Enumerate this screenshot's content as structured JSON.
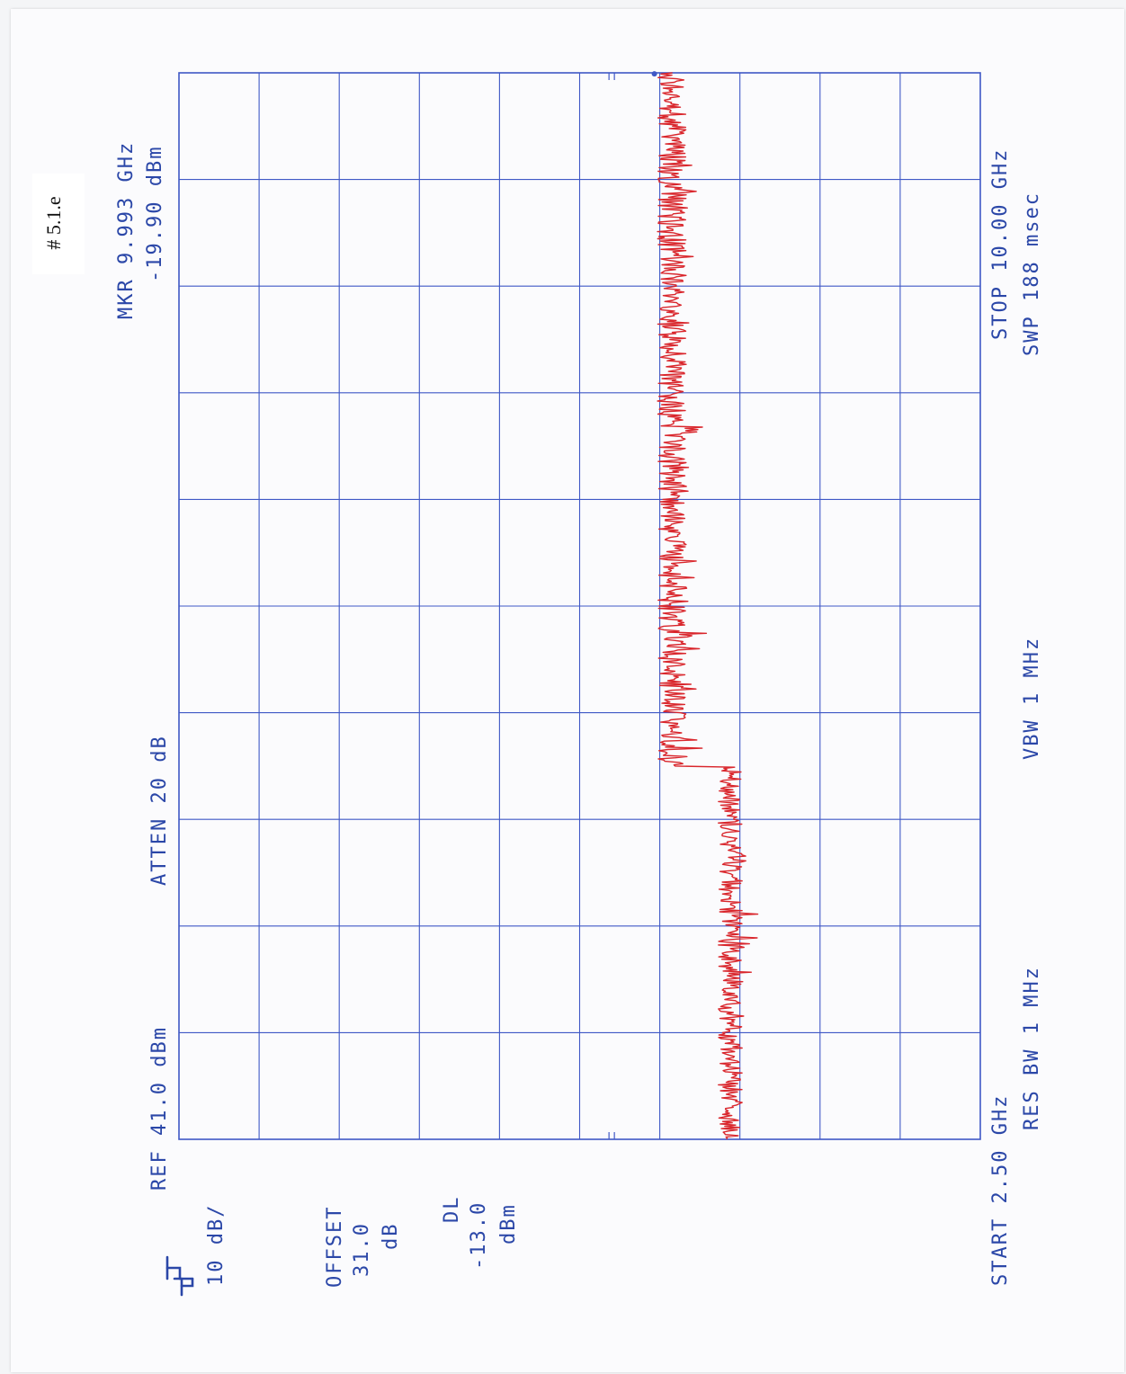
{
  "document": {
    "tag": "# 5.1.e"
  },
  "instrument": {
    "ref": "REF  41.0 dBm",
    "atten": "ATTEN 20 dB",
    "scale": "10 dB/",
    "offset_title": "OFFSET",
    "offset_value": "31.0",
    "offset_unit": "dB",
    "dl_title": "DL",
    "dl_value": "-13.0",
    "dl_unit": "dBm",
    "marker_freq": "MKR 9.993 GHz",
    "marker_level": "-19.90 dBm",
    "start": "START 2.50 GHz",
    "stop": "STOP 10.00 GHz",
    "res_bw": "RES BW 1 MHz",
    "vbw": "VBW 1 MHz",
    "sweep": "SWP 188 msec"
  },
  "colors": {
    "grid": "#3f58c6",
    "trace": "#d9262c",
    "text": "#2b47a8"
  },
  "chart_data": {
    "type": "line",
    "x_axis": {
      "start_ghz": 2.5,
      "stop_ghz": 10.0,
      "divisions": 10
    },
    "y_axis": {
      "ref_level_dbm": 41.0,
      "scale_db_per_div": 10,
      "divisions": 10,
      "ylim": [
        -59,
        41
      ]
    },
    "display_line_dbm": -13.0,
    "marker": {
      "freq_ghz": 9.993,
      "level_dbm": -19.9
    },
    "series": [
      {
        "segments": [
          {
            "x_range": [
              2.5,
              5.12
            ],
            "mean_dbm": -27.8,
            "noise_db": 1.5
          },
          {
            "x_range": [
              5.12,
              10.0
            ],
            "mean_dbm": -20.5,
            "noise_db": 1.8
          }
        ]
      }
    ],
    "grid": true
  }
}
